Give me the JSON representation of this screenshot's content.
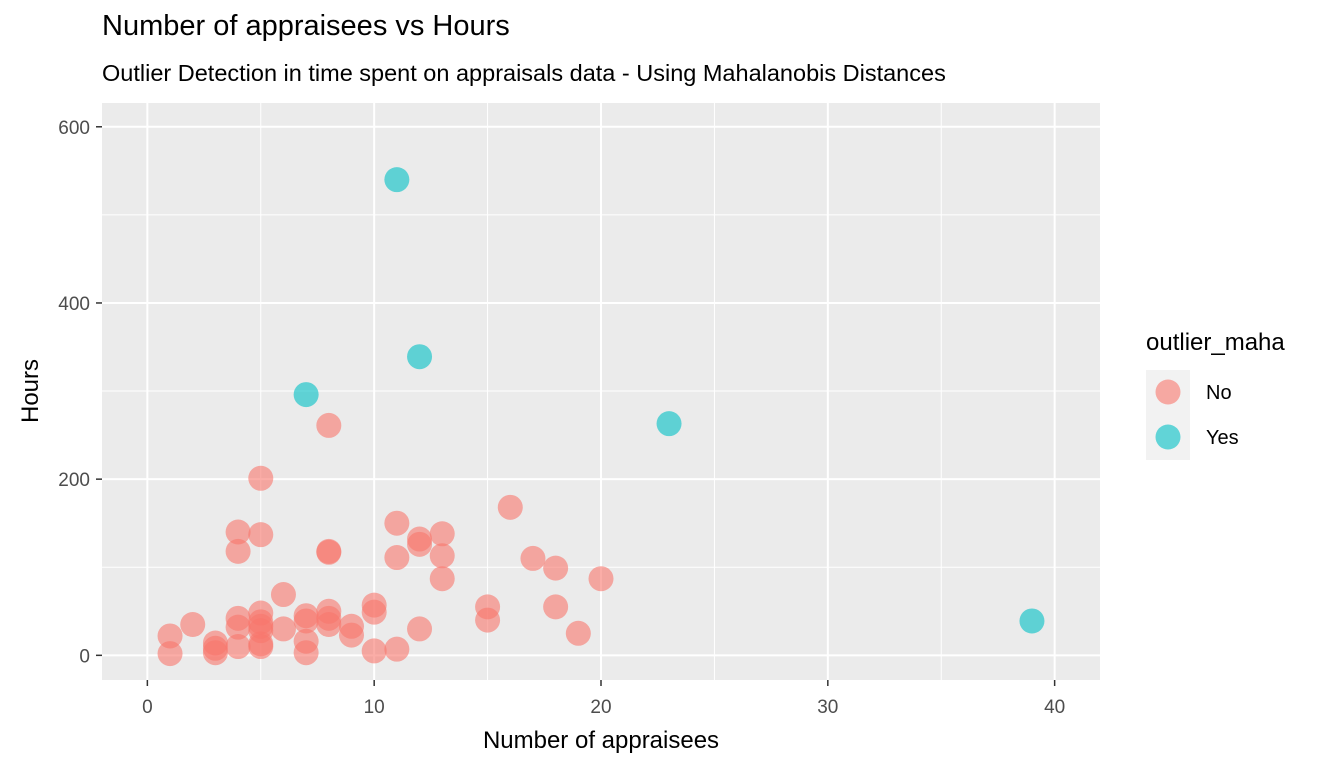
{
  "chart_data": {
    "type": "scatter",
    "title": "Number of appraisees vs Hours",
    "subtitle": "Outlier Detection in time spent on appraisals data - Using Mahalanobis Distances",
    "xlabel": "Number of appraisees",
    "ylabel": "Hours",
    "xlim": [
      -2,
      42
    ],
    "ylim": [
      -28,
      627
    ],
    "x_ticks": [
      0,
      10,
      20,
      30,
      40
    ],
    "y_ticks": [
      0,
      200,
      400,
      600
    ],
    "grid": true,
    "legend": {
      "title": "outlier_maha",
      "position": "right"
    },
    "series": [
      {
        "name": "No",
        "color": "#F8766D",
        "points": [
          [
            1,
            2
          ],
          [
            1,
            22
          ],
          [
            2,
            35
          ],
          [
            3,
            3
          ],
          [
            3,
            8
          ],
          [
            3,
            14
          ],
          [
            4,
            10
          ],
          [
            4,
            32
          ],
          [
            4,
            42
          ],
          [
            4,
            118
          ],
          [
            4,
            140
          ],
          [
            5,
            10
          ],
          [
            5,
            13
          ],
          [
            5,
            28
          ],
          [
            5,
            33
          ],
          [
            5,
            38
          ],
          [
            5,
            48
          ],
          [
            5,
            137
          ],
          [
            5,
            201
          ],
          [
            6,
            30
          ],
          [
            6,
            69
          ],
          [
            7,
            3
          ],
          [
            7,
            16
          ],
          [
            7,
            39
          ],
          [
            7,
            45
          ],
          [
            8,
            35
          ],
          [
            8,
            42
          ],
          [
            8,
            50
          ],
          [
            8,
            117
          ],
          [
            8,
            118
          ],
          [
            8,
            261
          ],
          [
            9,
            23
          ],
          [
            9,
            33
          ],
          [
            10,
            5
          ],
          [
            10,
            49
          ],
          [
            10,
            57
          ],
          [
            11,
            7
          ],
          [
            11,
            111
          ],
          [
            11,
            150
          ],
          [
            12,
            30
          ],
          [
            12,
            126
          ],
          [
            12,
            132
          ],
          [
            13,
            87
          ],
          [
            13,
            113
          ],
          [
            13,
            138
          ],
          [
            15,
            40
          ],
          [
            15,
            55
          ],
          [
            16,
            168
          ],
          [
            17,
            110
          ],
          [
            18,
            55
          ],
          [
            18,
            99
          ],
          [
            19,
            25
          ],
          [
            20,
            87
          ]
        ]
      },
      {
        "name": "Yes",
        "color": "#00BFC4",
        "points": [
          [
            7,
            296
          ],
          [
            11,
            540
          ],
          [
            12,
            339
          ],
          [
            23,
            263
          ],
          [
            39,
            39
          ]
        ]
      }
    ]
  }
}
